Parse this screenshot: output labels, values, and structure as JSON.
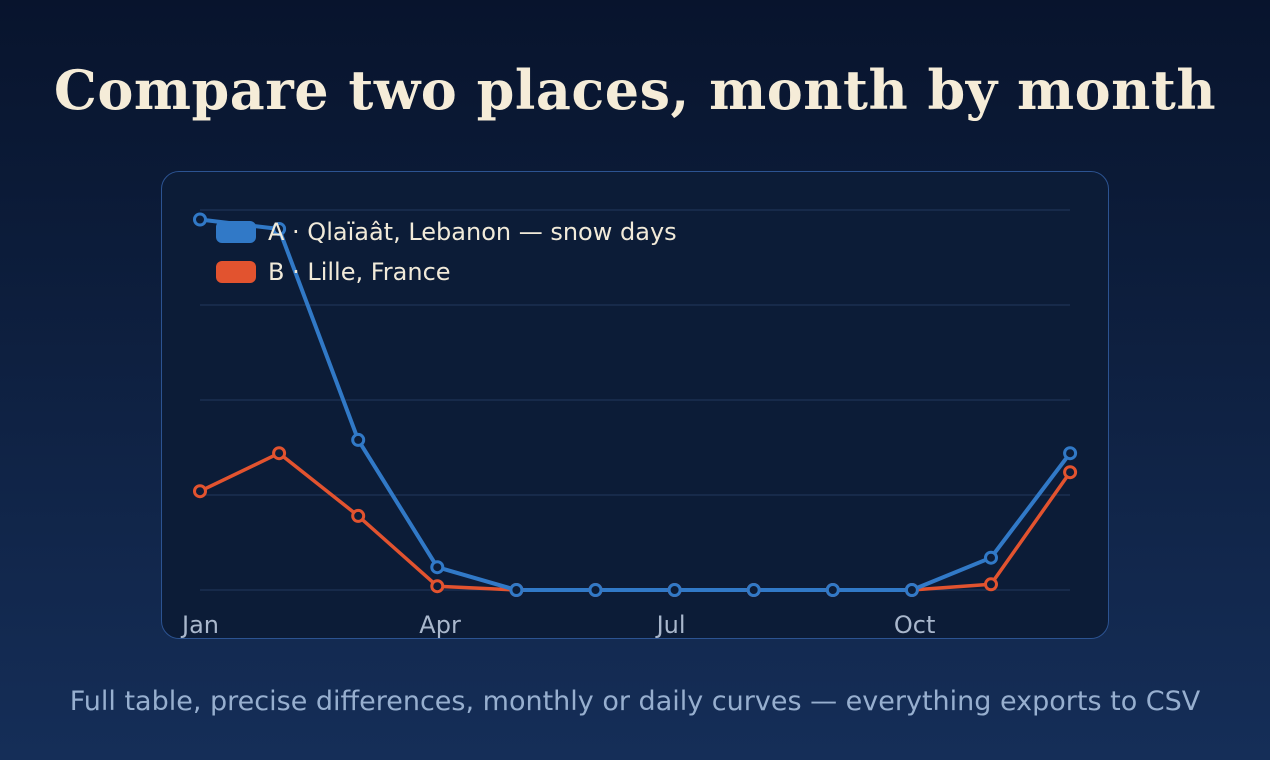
{
  "title": "Compare two places, month by month",
  "footer": "Full table, precise differences, monthly or daily curves — everything exports to CSV",
  "colors": {
    "series_a": "#3179c7",
    "series_b": "#e2532f",
    "background": "#0c1c37",
    "text": "#f5ecd8"
  },
  "chart_data": {
    "type": "line",
    "x": [
      "Jan",
      "Feb",
      "Mar",
      "Apr",
      "May",
      "Jun",
      "Jul",
      "Aug",
      "Sep",
      "Oct",
      "Nov",
      "Dec"
    ],
    "x_tick_labels": [
      "Jan",
      "Apr",
      "Jul",
      "Oct"
    ],
    "series": [
      {
        "name": "A · Qlaïaât, Lebanon — snow days",
        "color": "#3179c7",
        "values": [
          19.5,
          19.0,
          7.9,
          1.2,
          0,
          0,
          0,
          0,
          0,
          0,
          1.7,
          7.2
        ]
      },
      {
        "name": "B · Lille, France",
        "color": "#e2532f",
        "values": [
          5.2,
          7.2,
          3.9,
          0.2,
          0,
          0,
          0,
          0,
          0,
          0,
          0.3,
          6.2
        ]
      }
    ],
    "ylim": [
      0,
      20
    ],
    "grid": true,
    "legend": "top-left"
  }
}
